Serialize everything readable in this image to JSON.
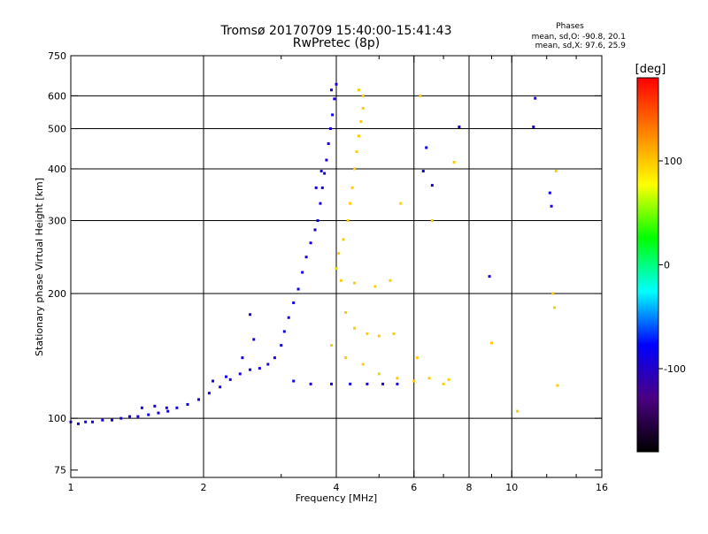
{
  "chart_data": {
    "type": "scatter",
    "title": "Tromsø 20170709 15:40:00-15:41:43",
    "subtitle": "RwPretec (8p)",
    "phases": {
      "heading": "Phases",
      "line1": "mean, sd,O: -90.8, 20.1",
      "line2": "mean, sd,X:  97.6, 25.9"
    },
    "xlabel": "Frequency [MHz]",
    "ylabel": "Stationary phase Virtual Height [km]",
    "x_scale": "log",
    "y_scale": "log",
    "xlim": [
      1,
      16
    ],
    "ylim": [
      72,
      750
    ],
    "x_ticks": [
      {
        "value": 1,
        "label": "1"
      },
      {
        "value": 2,
        "label": "2"
      },
      {
        "value": 4,
        "label": "4"
      },
      {
        "value": 6,
        "label": "6"
      },
      {
        "value": 8,
        "label": "8"
      },
      {
        "value": 10,
        "label": "10"
      },
      {
        "value": 16,
        "label": "16"
      }
    ],
    "x_gridlines": [
      2,
      4,
      6,
      8,
      10
    ],
    "x_minor": [
      3,
      5,
      7,
      9,
      12,
      14
    ],
    "y_ticks": [
      {
        "value": 75,
        "label": "75"
      },
      {
        "value": 100,
        "label": "100"
      },
      {
        "value": 200,
        "label": "200"
      },
      {
        "value": 300,
        "label": "300"
      },
      {
        "value": 400,
        "label": "400"
      },
      {
        "value": 500,
        "label": "500"
      },
      {
        "value": 600,
        "label": "600"
      },
      {
        "value": 750,
        "label": "750"
      }
    ],
    "y_gridlines": [
      100,
      200,
      300,
      400,
      500,
      600
    ],
    "colorbar": {
      "label": "[deg]",
      "range": [
        -180,
        180
      ],
      "ticks": [
        {
          "value": 100,
          "label": "100"
        },
        {
          "value": 0,
          "label": "0"
        },
        {
          "value": -100,
          "label": "-100"
        }
      ],
      "colors": [
        "#000000",
        "#4b0082",
        "#0000ff",
        "#00ffff",
        "#00ff00",
        "#ffff00",
        "#ff8000",
        "#ff0000"
      ]
    },
    "series": [
      {
        "mode": "O",
        "phase_mean": -90.8,
        "points": [
          [
            1.0,
            98
          ],
          [
            1.04,
            97
          ],
          [
            1.08,
            98
          ],
          [
            1.12,
            98
          ],
          [
            1.18,
            99
          ],
          [
            1.24,
            99
          ],
          [
            1.3,
            100
          ],
          [
            1.36,
            101
          ],
          [
            1.42,
            101
          ],
          [
            1.5,
            102
          ],
          [
            1.58,
            103
          ],
          [
            1.66,
            104
          ],
          [
            1.74,
            106
          ],
          [
            1.84,
            108
          ],
          [
            1.95,
            111
          ],
          [
            2.06,
            115
          ],
          [
            2.18,
            119
          ],
          [
            2.3,
            124
          ],
          [
            2.42,
            128
          ],
          [
            2.55,
            131
          ],
          [
            2.68,
            132
          ],
          [
            2.8,
            135
          ],
          [
            2.9,
            140
          ],
          [
            3.0,
            150
          ],
          [
            3.05,
            162
          ],
          [
            3.12,
            175
          ],
          [
            3.2,
            190
          ],
          [
            3.28,
            205
          ],
          [
            3.35,
            225
          ],
          [
            3.42,
            245
          ],
          [
            3.5,
            265
          ],
          [
            3.58,
            285
          ],
          [
            3.63,
            300
          ],
          [
            3.68,
            330
          ],
          [
            3.72,
            360
          ],
          [
            3.76,
            390
          ],
          [
            3.8,
            420
          ],
          [
            3.84,
            460
          ],
          [
            3.88,
            500
          ],
          [
            3.92,
            540
          ],
          [
            3.96,
            590
          ],
          [
            4.0,
            640
          ],
          [
            3.2,
            123
          ],
          [
            3.5,
            121
          ],
          [
            3.9,
            121
          ],
          [
            4.3,
            121
          ],
          [
            4.7,
            121
          ],
          [
            5.1,
            121
          ],
          [
            5.5,
            121
          ],
          [
            1.45,
            106
          ],
          [
            1.55,
            107
          ],
          [
            1.65,
            106
          ],
          [
            2.1,
            123
          ],
          [
            2.25,
            126
          ],
          [
            2.45,
            140
          ],
          [
            2.6,
            155
          ],
          [
            2.55,
            178
          ],
          [
            3.6,
            360
          ],
          [
            3.7,
            395
          ],
          [
            3.9,
            620
          ],
          [
            11.3,
            592
          ],
          [
            11.2,
            505
          ],
          [
            12.2,
            350
          ],
          [
            12.3,
            325
          ],
          [
            8.9,
            220
          ],
          [
            7.6,
            505
          ],
          [
            6.4,
            450
          ],
          [
            6.3,
            395
          ],
          [
            6.6,
            365
          ]
        ]
      },
      {
        "mode": "X",
        "phase_mean": 97.6,
        "points": [
          [
            4.0,
            230
          ],
          [
            4.05,
            250
          ],
          [
            4.15,
            270
          ],
          [
            4.25,
            300
          ],
          [
            4.3,
            330
          ],
          [
            4.35,
            360
          ],
          [
            4.4,
            400
          ],
          [
            4.45,
            440
          ],
          [
            4.5,
            480
          ],
          [
            4.55,
            520
          ],
          [
            4.6,
            560
          ],
          [
            4.6,
            600
          ],
          [
            4.5,
            620
          ],
          [
            4.2,
            180
          ],
          [
            4.4,
            165
          ],
          [
            4.7,
            160
          ],
          [
            5.0,
            158
          ],
          [
            5.4,
            160
          ],
          [
            3.9,
            150
          ],
          [
            4.2,
            140
          ],
          [
            4.6,
            135
          ],
          [
            5.0,
            128
          ],
          [
            5.5,
            125
          ],
          [
            6.0,
            123
          ],
          [
            6.5,
            125
          ],
          [
            7.0,
            121
          ],
          [
            7.2,
            124
          ],
          [
            4.1,
            215
          ],
          [
            4.4,
            212
          ],
          [
            4.9,
            208
          ],
          [
            5.6,
            330
          ],
          [
            6.2,
            600
          ],
          [
            7.4,
            415
          ],
          [
            9.0,
            152
          ],
          [
            10.3,
            104
          ],
          [
            12.6,
            395
          ],
          [
            12.5,
            185
          ],
          [
            12.4,
            200
          ],
          [
            12.7,
            120
          ],
          [
            6.6,
            300
          ],
          [
            5.3,
            215
          ],
          [
            6.1,
            140
          ]
        ]
      }
    ]
  }
}
